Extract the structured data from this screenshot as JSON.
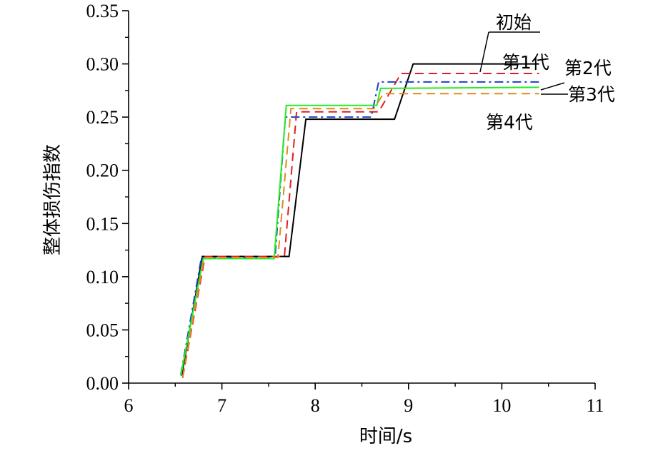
{
  "chart_data": {
    "type": "line",
    "xlabel": "时间/s",
    "ylabel": "整体损伤指数",
    "xlim": [
      6,
      11
    ],
    "ylim": [
      0,
      0.35
    ],
    "xticks": [
      "6",
      "7",
      "8",
      "9",
      "10",
      "11"
    ],
    "yticks": [
      "0.00",
      "0.05",
      "0.10",
      "0.15",
      "0.20",
      "0.25",
      "0.30",
      "0.35"
    ],
    "grid": false,
    "series": [
      {
        "name": "初始",
        "color": "#000000",
        "dash": "solid",
        "x": [
          6.57,
          6.79,
          7.72,
          7.9,
          8.85,
          9.05,
          10.4
        ],
        "y": [
          0.007,
          0.119,
          0.119,
          0.248,
          0.248,
          0.3,
          0.3
        ]
      },
      {
        "name": "第1代",
        "color": "#e02020",
        "dash": "dashed",
        "x": [
          6.58,
          6.82,
          7.67,
          7.8,
          8.68,
          8.92,
          10.4
        ],
        "y": [
          0.005,
          0.119,
          0.119,
          0.255,
          0.255,
          0.291,
          0.291
        ]
      },
      {
        "name": "第2代",
        "color": "#1f3fc8",
        "dash": "dashdot",
        "x": [
          6.56,
          6.78,
          7.57,
          7.68,
          8.6,
          8.68,
          10.4
        ],
        "y": [
          0.008,
          0.118,
          0.118,
          0.25,
          0.25,
          0.283,
          0.283
        ]
      },
      {
        "name": "第3代",
        "color": "#22ee22",
        "dash": "solid",
        "x": [
          6.56,
          6.8,
          7.56,
          7.69,
          8.66,
          8.7,
          10.4
        ],
        "y": [
          0.007,
          0.117,
          0.117,
          0.261,
          0.261,
          0.277,
          0.278
        ]
      },
      {
        "name": "第4代",
        "color": "#e08a20",
        "dash": "dashed",
        "x": [
          6.58,
          6.81,
          7.6,
          7.74,
          8.63,
          8.73,
          10.4
        ],
        "y": [
          0.006,
          0.118,
          0.118,
          0.258,
          0.258,
          0.272,
          0.272
        ]
      }
    ],
    "legend": "inline-right",
    "annotations": [
      "初始",
      "第1代",
      "第2代",
      "第3代",
      "第4代"
    ]
  }
}
